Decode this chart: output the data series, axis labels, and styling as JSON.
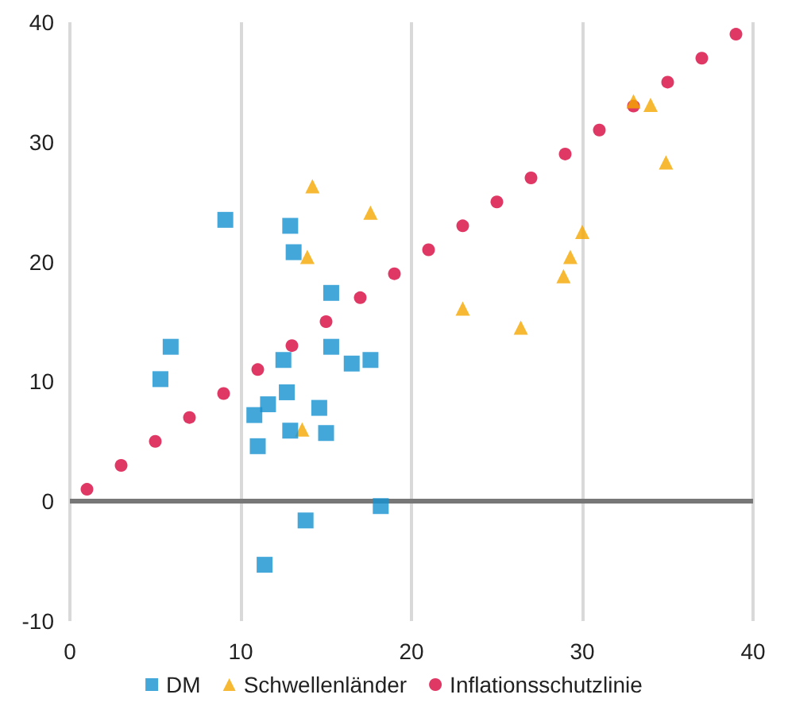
{
  "chart_data": {
    "type": "scatter",
    "series": [
      {
        "name": "DM",
        "color": "#1591d0",
        "marker": "square",
        "x": [
          9.1,
          12.9,
          13.1,
          15.3,
          5.9,
          5.3,
          15.3,
          12.5,
          16.5,
          17.6,
          12.7,
          11.6,
          10.8,
          14.6,
          12.9,
          15.0,
          11.0,
          13.8,
          18.2,
          11.4
        ],
        "values": [
          23.5,
          23.0,
          20.8,
          17.4,
          12.9,
          10.2,
          12.9,
          11.8,
          11.5,
          11.8,
          9.1,
          8.1,
          7.2,
          7.8,
          5.9,
          5.7,
          4.6,
          -1.6,
          -0.4,
          -5.3
        ]
      },
      {
        "name": "Schwellenländer",
        "color": "#f5a800",
        "marker": "triangle",
        "x": [
          14.2,
          13.9,
          13.6,
          17.6,
          23.0,
          26.4,
          28.9,
          29.3,
          30.0,
          33.0,
          34.0,
          34.9
        ],
        "values": [
          26.3,
          20.4,
          6.0,
          24.1,
          16.1,
          14.5,
          18.8,
          20.4,
          22.5,
          33.4,
          33.1,
          28.3
        ]
      },
      {
        "name": "Inflationsschutzlinie",
        "color": "#d7063f",
        "marker": "circle",
        "x": [
          1,
          3,
          5,
          7,
          9,
          11,
          13,
          15,
          17,
          19,
          21,
          23,
          25,
          27,
          29,
          31,
          33,
          35,
          37,
          39
        ],
        "values": [
          1,
          3,
          5,
          7,
          9,
          11,
          13,
          15,
          17,
          19,
          21,
          23,
          25,
          27,
          29,
          31,
          33,
          35,
          37,
          39
        ]
      }
    ],
    "xlim": [
      0,
      40
    ],
    "xticks": [
      0,
      10,
      20,
      30,
      40
    ],
    "ylim": [
      -10,
      40
    ],
    "yticks": [
      -10,
      0,
      10,
      20,
      30,
      40
    ],
    "grid": true,
    "legend": "bottom"
  }
}
